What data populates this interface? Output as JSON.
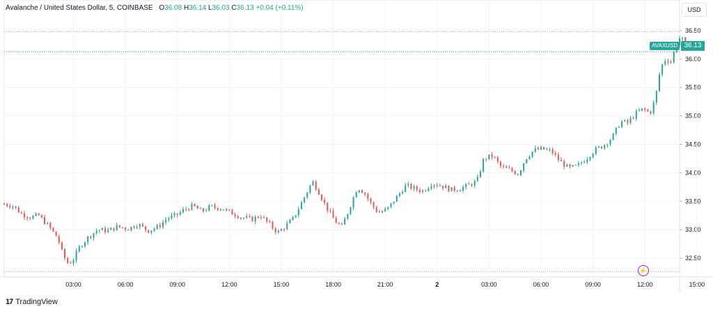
{
  "legend": {
    "title": "Avalanche / United States Dollar, 5, COINBASE",
    "open_label": "O",
    "open": "36.08",
    "high_label": "H",
    "high": "36.14",
    "low_label": "L",
    "low": "36.03",
    "close_label": "C",
    "close": "36.13",
    "change": "+0.04 (+0.11%)"
  },
  "currency_button": "USD",
  "symbol_tag": "AVAXUSD",
  "last_price": "36.13",
  "logo_text": "TradingView",
  "colors": {
    "up": "#26a69a",
    "down": "#ef5350",
    "grid": "#f0f3fa",
    "dotted": "#26a69a"
  },
  "chart_data": {
    "type": "candlestick",
    "title": "Avalanche / United States Dollar, 5, COINBASE",
    "ylim": [
      32.17,
      36.72
    ],
    "y_ticks": [
      "36.50",
      "36.00",
      "35.50",
      "35.00",
      "34.50",
      "34.00",
      "33.50",
      "33.00",
      "32.50"
    ],
    "x_ticks": [
      "03:00",
      "06:00",
      "09:00",
      "12:00",
      "15:00",
      "18:00",
      "21:00",
      "2",
      "03:00",
      "06:00",
      "09:00",
      "12:00",
      "15:00"
    ],
    "time_range_hours": [
      -1,
      38
    ],
    "session_high": 36.48,
    "session_low": 32.26,
    "last": 36.13,
    "close_series": [
      {
        "t": -1.0,
        "v": 33.45
      },
      {
        "t": -0.5,
        "v": 33.42
      },
      {
        "t": 0.0,
        "v": 33.28
      },
      {
        "t": 0.5,
        "v": 33.22
      },
      {
        "t": 1.0,
        "v": 33.25
      },
      {
        "t": 1.6,
        "v": 33.05
      },
      {
        "t": 2.1,
        "v": 32.85
      },
      {
        "t": 2.4,
        "v": 32.55
      },
      {
        "t": 2.7,
        "v": 32.4
      },
      {
        "t": 3.0,
        "v": 32.48
      },
      {
        "t": 3.4,
        "v": 32.72
      },
      {
        "t": 3.9,
        "v": 32.88
      },
      {
        "t": 4.4,
        "v": 33.0
      },
      {
        "t": 5.0,
        "v": 32.98
      },
      {
        "t": 5.5,
        "v": 33.05
      },
      {
        "t": 6.2,
        "v": 33.02
      },
      {
        "t": 6.7,
        "v": 33.1
      },
      {
        "t": 7.3,
        "v": 32.98
      },
      {
        "t": 7.9,
        "v": 33.05
      },
      {
        "t": 8.4,
        "v": 33.2
      },
      {
        "t": 8.9,
        "v": 33.25
      },
      {
        "t": 9.4,
        "v": 33.35
      },
      {
        "t": 9.9,
        "v": 33.42
      },
      {
        "t": 10.4,
        "v": 33.32
      },
      {
        "t": 10.9,
        "v": 33.4
      },
      {
        "t": 11.5,
        "v": 33.38
      },
      {
        "t": 12.1,
        "v": 33.3
      },
      {
        "t": 12.7,
        "v": 33.22
      },
      {
        "t": 13.3,
        "v": 33.18
      },
      {
        "t": 13.8,
        "v": 33.25
      },
      {
        "t": 14.3,
        "v": 33.1
      },
      {
        "t": 14.8,
        "v": 32.95
      },
      {
        "t": 15.2,
        "v": 33.05
      },
      {
        "t": 15.7,
        "v": 33.2
      },
      {
        "t": 16.3,
        "v": 33.55
      },
      {
        "t": 16.8,
        "v": 33.85
      },
      {
        "t": 17.1,
        "v": 33.7
      },
      {
        "t": 17.6,
        "v": 33.4
      },
      {
        "t": 18.1,
        "v": 33.15
      },
      {
        "t": 18.5,
        "v": 33.05
      },
      {
        "t": 18.9,
        "v": 33.35
      },
      {
        "t": 19.4,
        "v": 33.75
      },
      {
        "t": 19.8,
        "v": 33.65
      },
      {
        "t": 20.2,
        "v": 33.45
      },
      {
        "t": 20.6,
        "v": 33.3
      },
      {
        "t": 21.1,
        "v": 33.35
      },
      {
        "t": 21.6,
        "v": 33.55
      },
      {
        "t": 22.2,
        "v": 33.78
      },
      {
        "t": 22.7,
        "v": 33.72
      },
      {
        "t": 23.2,
        "v": 33.68
      },
      {
        "t": 23.7,
        "v": 33.82
      },
      {
        "t": 24.2,
        "v": 33.78
      },
      {
        "t": 24.8,
        "v": 33.7
      },
      {
        "t": 25.3,
        "v": 33.72
      },
      {
        "t": 25.8,
        "v": 33.78
      },
      {
        "t": 26.3,
        "v": 33.85
      },
      {
        "t": 26.7,
        "v": 34.25
      },
      {
        "t": 27.2,
        "v": 34.3
      },
      {
        "t": 27.7,
        "v": 34.1
      },
      {
        "t": 28.2,
        "v": 34.05
      },
      {
        "t": 28.7,
        "v": 33.98
      },
      {
        "t": 29.1,
        "v": 34.25
      },
      {
        "t": 29.6,
        "v": 34.4
      },
      {
        "t": 30.1,
        "v": 34.42
      },
      {
        "t": 30.6,
        "v": 34.38
      },
      {
        "t": 31.1,
        "v": 34.2
      },
      {
        "t": 31.6,
        "v": 34.08
      },
      {
        "t": 32.1,
        "v": 34.12
      },
      {
        "t": 32.6,
        "v": 34.25
      },
      {
        "t": 33.1,
        "v": 34.4
      },
      {
        "t": 33.6,
        "v": 34.48
      },
      {
        "t": 34.1,
        "v": 34.62
      },
      {
        "t": 34.6,
        "v": 34.9
      },
      {
        "t": 35.0,
        "v": 34.88
      },
      {
        "t": 35.5,
        "v": 35.05
      },
      {
        "t": 35.9,
        "v": 35.12
      },
      {
        "t": 36.3,
        "v": 35.05
      },
      {
        "t": 36.6,
        "v": 35.3
      },
      {
        "t": 36.9,
        "v": 35.85
      },
      {
        "t": 37.2,
        "v": 36.0
      },
      {
        "t": 37.5,
        "v": 35.95
      },
      {
        "t": 37.8,
        "v": 36.25
      },
      {
        "t": 38.1,
        "v": 36.42
      },
      {
        "t": 38.35,
        "v": 36.13
      }
    ]
  }
}
